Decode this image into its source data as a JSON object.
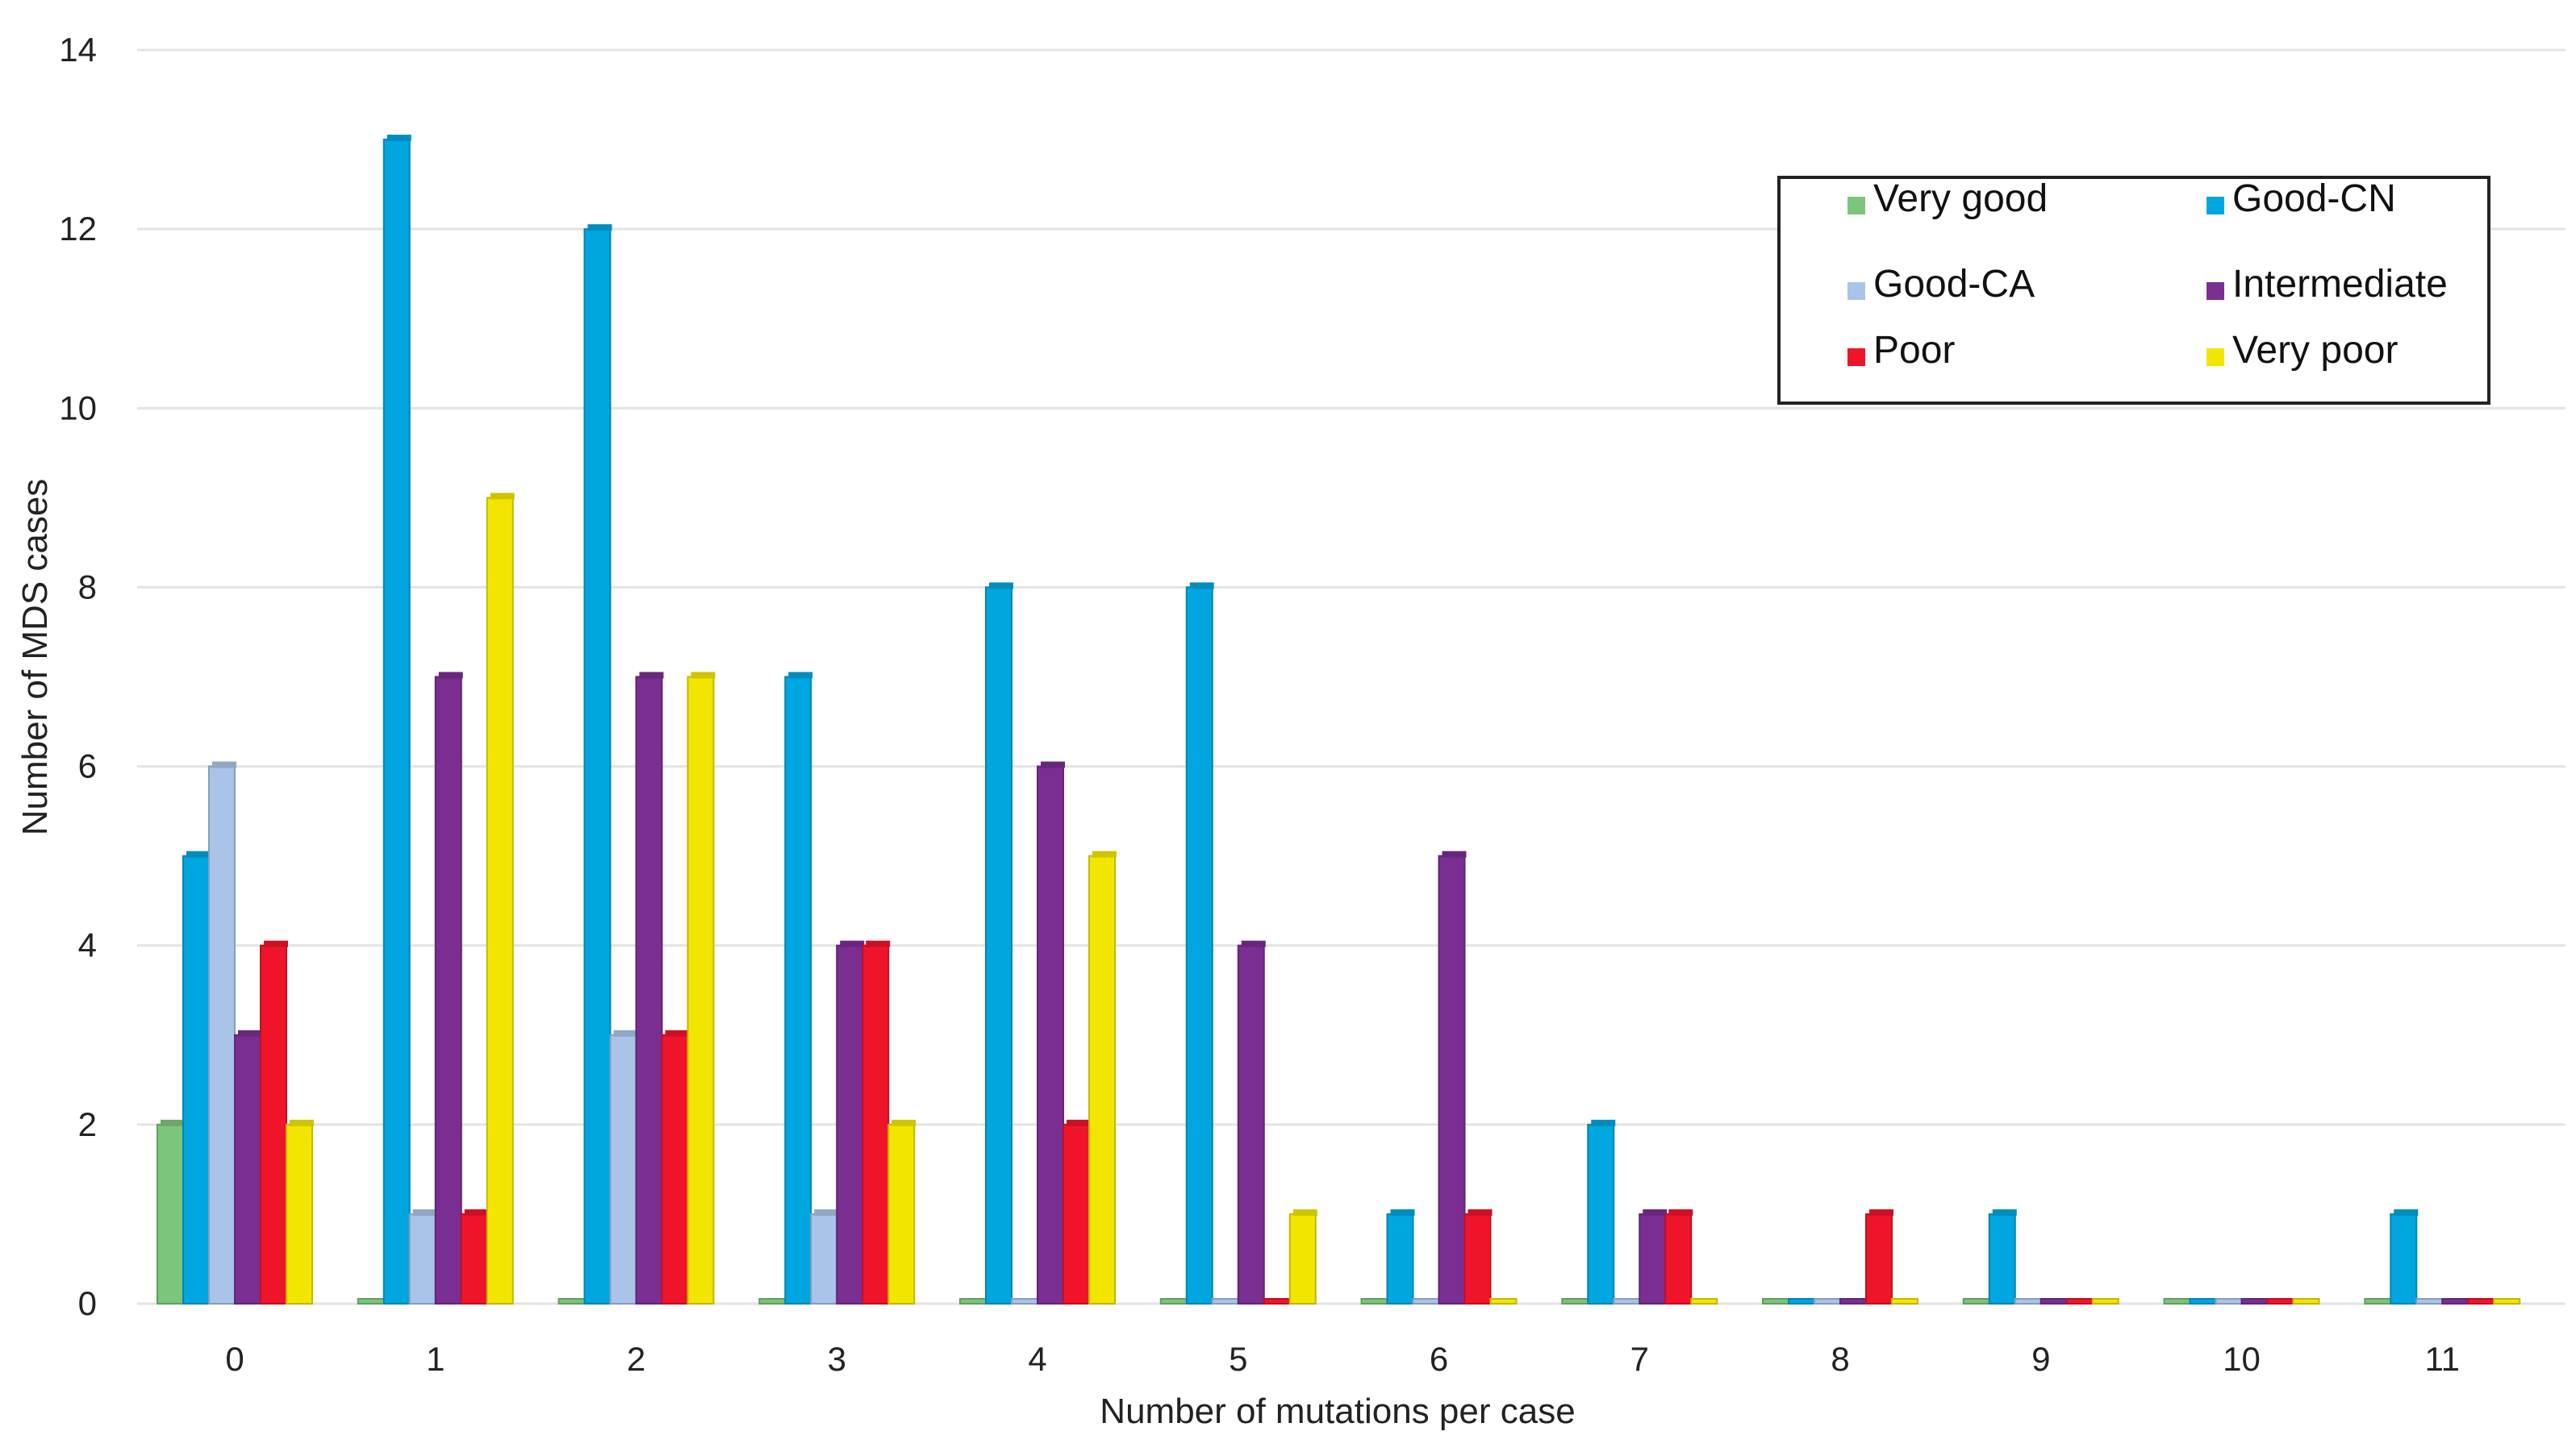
{
  "chart_data": {
    "type": "bar",
    "xlabel": "Number of mutations per case",
    "ylabel": "Number of MDS cases",
    "ylim": [
      0,
      14
    ],
    "yticks": [
      0,
      2,
      4,
      6,
      8,
      10,
      12,
      14
    ],
    "grid": "horizontal",
    "legend_position": "top-right",
    "categories": [
      "0",
      "1",
      "2",
      "3",
      "4",
      "5",
      "6",
      "7",
      "8",
      "9",
      "10",
      "11"
    ],
    "series": [
      {
        "name": "Very good",
        "color": "#7bc67a",
        "values": [
          2,
          0,
          0,
          0,
          0,
          0,
          0,
          0,
          0,
          0,
          0,
          0
        ]
      },
      {
        "name": "Good-CN",
        "color": "#00a6e0",
        "values": [
          5,
          13,
          12,
          7,
          8,
          8,
          1,
          2,
          0,
          1,
          0,
          1
        ]
      },
      {
        "name": "Good-CA",
        "color": "#a9c4e8",
        "values": [
          6,
          1,
          3,
          1,
          0,
          0,
          0,
          0,
          0,
          0,
          0,
          0
        ]
      },
      {
        "name": "Intermediate",
        "color": "#7a2e92",
        "values": [
          3,
          7,
          7,
          4,
          6,
          4,
          5,
          1,
          0,
          0,
          0,
          0
        ]
      },
      {
        "name": "Poor",
        "color": "#f0142a",
        "values": [
          4,
          1,
          3,
          4,
          2,
          0,
          1,
          1,
          1,
          0,
          0,
          0
        ]
      },
      {
        "name": "Very poor",
        "color": "#f2e600",
        "values": [
          2,
          9,
          7,
          2,
          5,
          1,
          0,
          0,
          0,
          0,
          0,
          0
        ]
      }
    ]
  }
}
